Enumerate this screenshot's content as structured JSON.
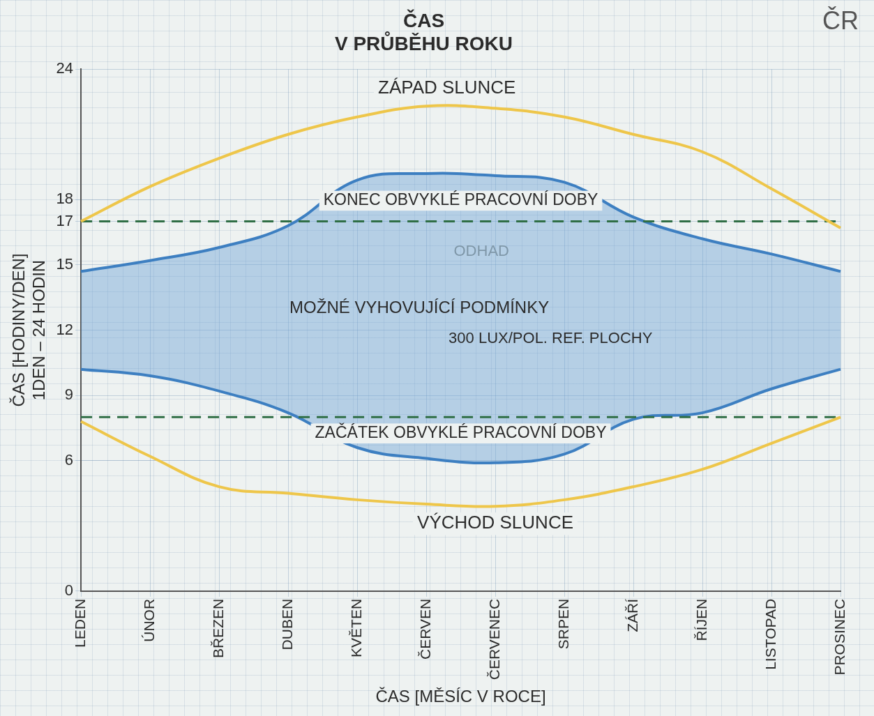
{
  "chart_data": {
    "type": "line",
    "title": "ČAS V PRŮBĚHU ROKU",
    "x_label": "ČAS [MĚSÍC V ROCE]",
    "y_label": [
      "ČAS [HODINY/DEN]",
      "1DEN – 24 HODIN"
    ],
    "categories": [
      "LEDEN",
      "ÚNOR",
      "BŘEZEN",
      "DUBEN",
      "KVĚTEN",
      "ČERVEN",
      "ČERVENEC",
      "SRPEN",
      "ZÁŘÍ",
      "ŘÍJEN",
      "LISTOPAD",
      "PROSINEC"
    ],
    "ylim": [
      0,
      24
    ],
    "yticks": [
      0,
      6,
      9,
      12,
      15,
      17,
      18,
      24
    ],
    "grid": true,
    "legend": false,
    "series": [
      {
        "name": "ZÁPAD SLUNCE",
        "color": "#eec64a",
        "values": [
          17.0,
          18.6,
          19.9,
          21.0,
          21.8,
          22.3,
          22.2,
          21.8,
          21.0,
          20.2,
          18.5,
          16.7
        ]
      },
      {
        "name": "VÝCHOD SLUNCE",
        "color": "#eec64a",
        "values": [
          7.8,
          6.2,
          4.8,
          4.5,
          4.2,
          4.0,
          3.9,
          4.2,
          4.8,
          5.6,
          6.8,
          8.0
        ]
      },
      {
        "name": "KONEC OBVYKLÉ PRACOVNÍ DOBY",
        "color": "#2f6e45",
        "line_style": "dashed",
        "values": [
          17,
          17,
          17,
          17,
          17,
          17,
          17,
          17,
          17,
          17,
          17,
          17
        ]
      },
      {
        "name": "ZAČÁTEK OBVYKLÉ PRACOVNÍ DOBY",
        "color": "#2f6e45",
        "line_style": "dashed",
        "values": [
          8,
          8,
          8,
          8,
          8,
          8,
          8,
          8,
          8,
          8,
          8,
          8
        ]
      },
      {
        "color": "#3d7fc1",
        "values": [
          14.7,
          15.2,
          15.8,
          16.8,
          18.9,
          19.2,
          19.1,
          18.8,
          17.2,
          16.2,
          15.5,
          14.7
        ]
      },
      {
        "color": "#3d7fc1",
        "values": [
          10.2,
          9.9,
          9.2,
          8.2,
          6.6,
          6.1,
          5.9,
          6.3,
          7.9,
          8.2,
          9.3,
          10.2
        ]
      }
    ],
    "annotations": [
      "MOŽNÉ VYHOVUJÍCÍ PODMÍNKY",
      "300 LUX/POL. REF. PLOCHY",
      "ODHAD",
      "ČR"
    ]
  }
}
